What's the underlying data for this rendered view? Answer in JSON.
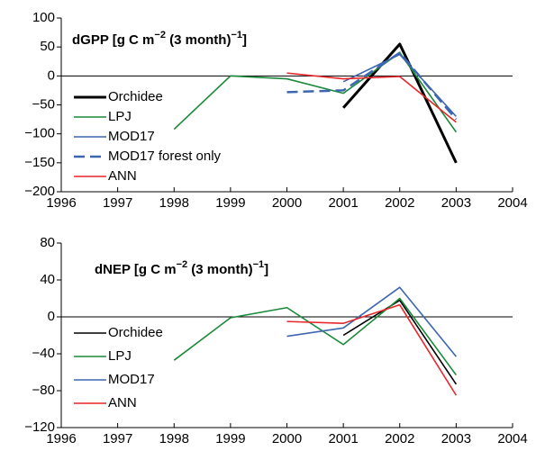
{
  "chart_data": [
    {
      "type": "line",
      "title": [
        "dGPP [g C m",
        "−2",
        " (3 month)",
        "−1",
        "]"
      ],
      "x": [
        1998,
        1999,
        2000,
        2001,
        2002,
        2003
      ],
      "xlim": [
        1996,
        2004
      ],
      "xticks": [
        1996,
        1997,
        1998,
        1999,
        2000,
        2001,
        2002,
        2003,
        2004
      ],
      "ylim": [
        -200,
        100
      ],
      "yticks": [
        {
          "value": -200,
          "label": "−200"
        },
        {
          "value": -150,
          "label": "−150"
        },
        {
          "value": -100,
          "label": "−100"
        },
        {
          "value": -50,
          "label": "−50"
        },
        0,
        50,
        100
      ],
      "legend": "lower left",
      "series": [
        {
          "name": "Orchidee",
          "color": "#000000",
          "line_width": 3,
          "line_style": "solid",
          "values": [
            null,
            null,
            null,
            -55,
            55,
            -150
          ]
        },
        {
          "name": "LPJ",
          "color": "#1a8a3a",
          "line_width": 1.6,
          "line_style": "solid",
          "values": [
            -92,
            0,
            -5,
            -30,
            40,
            -97
          ]
        },
        {
          "name": "MOD17",
          "color": "#3d66b0",
          "line_width": 1.6,
          "line_style": "solid",
          "values": [
            null,
            null,
            null,
            -10,
            37,
            -70
          ]
        },
        {
          "name": "MOD17 forest only",
          "color": "#3d66b0",
          "line_width": 2.5,
          "line_style": "dashed",
          "values": [
            null,
            null,
            -28,
            -25,
            40,
            -75
          ]
        },
        {
          "name": "ANN",
          "color": "#e8252a",
          "line_width": 1.6,
          "line_style": "solid",
          "values": [
            null,
            null,
            5,
            -5,
            -1,
            -80
          ]
        }
      ]
    },
    {
      "type": "line",
      "title": [
        "dNEP [g C m",
        "−2",
        " (3 month)",
        "−1",
        "]"
      ],
      "x": [
        1998,
        1999,
        2000,
        2001,
        2002,
        2003
      ],
      "xlim": [
        1996,
        2004
      ],
      "xticks": [
        1996,
        1997,
        1998,
        1999,
        2000,
        2001,
        2002,
        2003,
        2004
      ],
      "ylim": [
        -120,
        80
      ],
      "yticks": [
        {
          "value": -120,
          "label": "−120"
        },
        {
          "value": -80,
          "label": "−80"
        },
        {
          "value": -40,
          "label": "−40"
        },
        0,
        40,
        80
      ],
      "legend": "lower left",
      "series": [
        {
          "name": "Orchidee",
          "color": "#000000",
          "line_width": 1.6,
          "line_style": "solid",
          "values": [
            null,
            null,
            null,
            -20,
            18,
            -73
          ]
        },
        {
          "name": "LPJ",
          "color": "#1a8a3a",
          "line_width": 1.6,
          "line_style": "solid",
          "values": [
            -47,
            -1,
            10,
            -30,
            20,
            -63
          ]
        },
        {
          "name": "MOD17",
          "color": "#3d66b0",
          "line_width": 1.6,
          "line_style": "solid",
          "values": [
            null,
            null,
            -21,
            -12,
            32,
            -43
          ]
        },
        {
          "name": "ANN",
          "color": "#e8252a",
          "line_width": 1.6,
          "line_style": "solid",
          "values": [
            null,
            null,
            -5,
            -7,
            13,
            -85
          ]
        }
      ]
    }
  ]
}
